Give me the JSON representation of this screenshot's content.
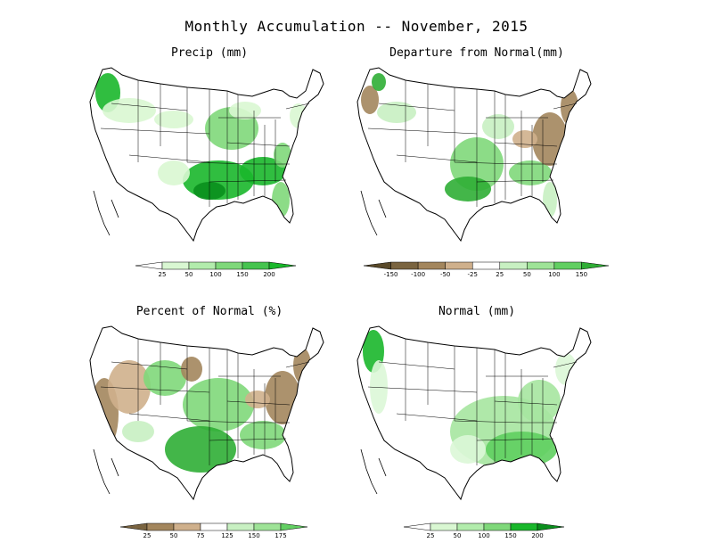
{
  "title": "Monthly Accumulation -- November, 2015",
  "panels": [
    {
      "id": "precip",
      "label": "Precip (mm)",
      "palette": {
        "base": "#ffffff",
        "light": "#d9f7d2",
        "mid": "#7fd87a",
        "dark": "#19b72b",
        "darker": "#0a8f1d"
      },
      "legend": {
        "labels": [
          "25",
          "50",
          "100",
          "150",
          "200"
        ],
        "colors": [
          "#ffffff",
          "#d9f7d2",
          "#b2ecac",
          "#7fd87a",
          "#46c44f",
          "#19b72b"
        ]
      }
    },
    {
      "id": "departure",
      "label": "Departure from Normal(mm)",
      "palette": {
        "base": "#ffffff",
        "light": "#c8f0c2",
        "mid": "#7fd87a",
        "dark": "#2fae35",
        "brown": "#a3865d",
        "lightbrown": "#cfb08c"
      },
      "legend": {
        "labels": [
          "-150",
          "-100",
          "-50",
          "-25",
          "25",
          "50",
          "100",
          "150"
        ],
        "colors": [
          "#5a4a2a",
          "#7a6440",
          "#a3865d",
          "#cfb08c",
          "#ffffff",
          "#c8f0c2",
          "#9ee397",
          "#62cf62",
          "#2fae35"
        ]
      }
    },
    {
      "id": "percent",
      "label": "Percent of Normal (%)",
      "palette": {
        "base": "#ffffff",
        "light": "#c8f0c2",
        "mid": "#7fd87a",
        "dark": "#2fae35",
        "brown": "#a3865d",
        "lightbrown": "#cfb08c"
      },
      "legend": {
        "labels": [
          "25",
          "50",
          "75",
          "125",
          "150",
          "175"
        ],
        "colors": [
          "#7a6440",
          "#a3865d",
          "#cfb08c",
          "#ffffff",
          "#c8f0c2",
          "#9ee397",
          "#62cf62"
        ]
      }
    },
    {
      "id": "normal",
      "label": "Normal (mm)",
      "palette": {
        "base": "#ffffff",
        "light": "#dcf7d7",
        "mid": "#a6e6a0",
        "dark": "#5fcf5f",
        "darker": "#19b72b"
      },
      "legend": {
        "labels": [
          "25",
          "50",
          "100",
          "150",
          "200"
        ],
        "colors": [
          "#ffffff",
          "#d9f7d2",
          "#b2ecac",
          "#7fd87a",
          "#19b72b",
          "#0a8f1d"
        ]
      }
    }
  ]
}
